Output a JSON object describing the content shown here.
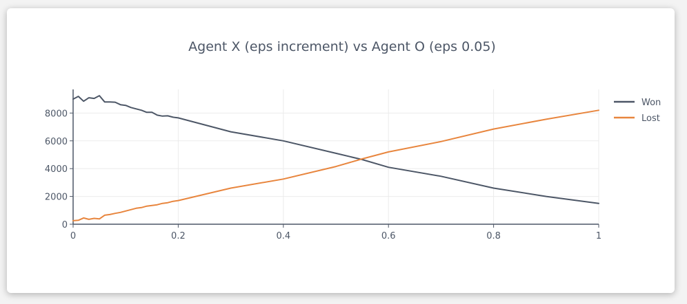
{
  "chart_data": {
    "type": "line",
    "title": "Agent X (eps increment) vs Agent O (eps 0.05)",
    "xlabel": "",
    "ylabel": "",
    "xlim": [
      0,
      1
    ],
    "ylim": [
      0,
      9700
    ],
    "x_ticks": [
      0,
      0.2,
      0.4,
      0.6,
      0.8,
      1
    ],
    "x_tick_labels": [
      "0",
      "0.2",
      "0.4",
      "0.6",
      "0.8",
      "1"
    ],
    "y_ticks": [
      0,
      2000,
      4000,
      6000,
      8000
    ],
    "y_tick_labels": [
      "0",
      "2000",
      "4000",
      "6000",
      "8000"
    ],
    "grid": true,
    "legend_position": "top-right",
    "series": [
      {
        "name": "Won",
        "color": "#4c5666",
        "x": [
          0,
          0.01,
          0.02,
          0.03,
          0.04,
          0.05,
          0.06,
          0.07,
          0.08,
          0.09,
          0.1,
          0.11,
          0.12,
          0.13,
          0.14,
          0.15,
          0.16,
          0.17,
          0.18,
          0.19,
          0.2,
          0.3,
          0.4,
          0.5,
          0.55,
          0.6,
          0.7,
          0.8,
          0.9,
          1
        ],
        "values": [
          9000,
          9200,
          8850,
          9100,
          9050,
          9250,
          8800,
          8800,
          8780,
          8600,
          8550,
          8400,
          8300,
          8200,
          8050,
          8050,
          7850,
          7780,
          7800,
          7700,
          7650,
          6650,
          6000,
          5100,
          4650,
          4100,
          3450,
          2600,
          2000,
          1500
        ]
      },
      {
        "name": "Lost",
        "color": "#e8853d",
        "x": [
          0,
          0.01,
          0.02,
          0.03,
          0.04,
          0.05,
          0.06,
          0.07,
          0.08,
          0.09,
          0.1,
          0.11,
          0.12,
          0.13,
          0.14,
          0.15,
          0.16,
          0.17,
          0.18,
          0.19,
          0.2,
          0.3,
          0.4,
          0.5,
          0.55,
          0.6,
          0.7,
          0.8,
          0.9,
          1
        ],
        "values": [
          250,
          280,
          450,
          350,
          420,
          380,
          650,
          700,
          780,
          850,
          950,
          1050,
          1150,
          1200,
          1300,
          1350,
          1400,
          1500,
          1550,
          1650,
          1700,
          2600,
          3250,
          4150,
          4700,
          5200,
          5950,
          6850,
          7550,
          8200
        ]
      }
    ]
  }
}
